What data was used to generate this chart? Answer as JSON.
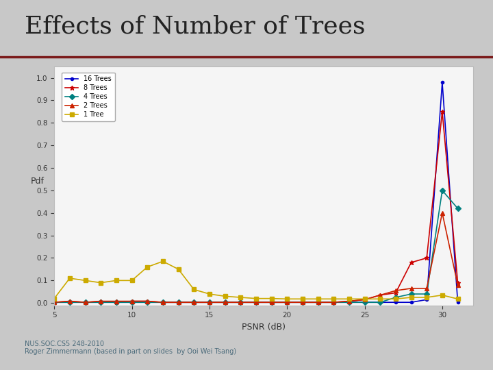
{
  "title": "Effects of Number of Trees",
  "title_fontsize": 26,
  "title_color": "#222222",
  "subtitle_line_color": "#7B1A1A",
  "xlabel": "PSNR (dB)",
  "ylabel": "Pdf",
  "xlim": [
    5,
    32
  ],
  "ylim": [
    -0.01,
    1.05
  ],
  "xticks": [
    5,
    10,
    15,
    20,
    25,
    30
  ],
  "yticks": [
    0,
    0.1,
    0.2,
    0.3,
    0.4,
    0.5,
    0.6,
    0.7,
    0.8,
    0.9,
    1
  ],
  "outer_bg": "#c8c8c8",
  "inner_bg": "#ffffff",
  "plot_bg_color": "#f5f5f5",
  "footer_line1": "NUS.SOC.CS5 248-2010",
  "footer_line2": "Roger Zimmermann (based in part on slides  by Ooi Wei Tsang)",
  "footer_color": "#4a6a7a",
  "footer_fontsize": 7,
  "series": [
    {
      "label": "16 Trees",
      "color": "#0000cc",
      "marker": "o",
      "markersize": 3,
      "linewidth": 1.2,
      "x": [
        5,
        6,
        7,
        8,
        9,
        10,
        11,
        12,
        13,
        14,
        15,
        16,
        17,
        18,
        19,
        20,
        21,
        22,
        23,
        24,
        25,
        26,
        27,
        28,
        29,
        30,
        31
      ],
      "y": [
        0.003,
        0.003,
        0.003,
        0.003,
        0.003,
        0.003,
        0.003,
        0.003,
        0.003,
        0.003,
        0.003,
        0.003,
        0.003,
        0.003,
        0.003,
        0.003,
        0.003,
        0.003,
        0.003,
        0.003,
        0.003,
        0.003,
        0.003,
        0.003,
        0.015,
        0.98,
        0.003
      ]
    },
    {
      "label": "8 Trees",
      "color": "#cc0000",
      "marker": "*",
      "markersize": 5,
      "linewidth": 1.2,
      "x": [
        5,
        6,
        7,
        8,
        9,
        10,
        11,
        12,
        13,
        14,
        15,
        16,
        17,
        18,
        19,
        20,
        21,
        22,
        23,
        24,
        25,
        26,
        27,
        28,
        29,
        30,
        31
      ],
      "y": [
        0.003,
        0.008,
        0.003,
        0.008,
        0.003,
        0.008,
        0.008,
        0.003,
        0.003,
        0.003,
        0.003,
        0.003,
        0.003,
        0.003,
        0.003,
        0.003,
        0.003,
        0.003,
        0.003,
        0.008,
        0.015,
        0.035,
        0.045,
        0.18,
        0.2,
        0.85,
        0.09
      ]
    },
    {
      "label": "4 Trees",
      "color": "#008080",
      "marker": "D",
      "markersize": 4,
      "linewidth": 1.2,
      "x": [
        5,
        6,
        7,
        8,
        9,
        10,
        11,
        12,
        13,
        14,
        15,
        16,
        17,
        18,
        19,
        20,
        21,
        22,
        23,
        24,
        25,
        26,
        27,
        28,
        29,
        30,
        31
      ],
      "y": [
        0.003,
        0.003,
        0.003,
        0.003,
        0.003,
        0.003,
        0.003,
        0.003,
        0.003,
        0.003,
        0.003,
        0.003,
        0.003,
        0.003,
        0.003,
        0.003,
        0.003,
        0.003,
        0.003,
        0.003,
        0.003,
        0.003,
        0.025,
        0.04,
        0.04,
        0.5,
        0.42
      ]
    },
    {
      "label": "2 Trees",
      "color": "#cc2200",
      "marker": "^",
      "markersize": 4,
      "linewidth": 1.2,
      "x": [
        5,
        6,
        7,
        8,
        9,
        10,
        11,
        12,
        13,
        14,
        15,
        16,
        17,
        18,
        19,
        20,
        21,
        22,
        23,
        24,
        25,
        26,
        27,
        28,
        29,
        30,
        31
      ],
      "y": [
        0.003,
        0.008,
        0.003,
        0.008,
        0.008,
        0.008,
        0.008,
        0.003,
        0.003,
        0.003,
        0.003,
        0.003,
        0.003,
        0.003,
        0.003,
        0.003,
        0.003,
        0.003,
        0.003,
        0.008,
        0.015,
        0.035,
        0.055,
        0.065,
        0.065,
        0.4,
        0.08
      ]
    },
    {
      "label": "1 Tree",
      "color": "#ccaa00",
      "marker": "s",
      "markersize": 4,
      "linewidth": 1.2,
      "x": [
        5,
        6,
        7,
        8,
        9,
        10,
        11,
        12,
        13,
        14,
        15,
        16,
        17,
        18,
        19,
        20,
        21,
        22,
        23,
        24,
        25,
        26,
        27,
        28,
        29,
        30,
        31
      ],
      "y": [
        0.02,
        0.11,
        0.1,
        0.09,
        0.1,
        0.1,
        0.16,
        0.185,
        0.15,
        0.06,
        0.04,
        0.03,
        0.025,
        0.02,
        0.02,
        0.018,
        0.018,
        0.018,
        0.018,
        0.018,
        0.018,
        0.018,
        0.018,
        0.025,
        0.025,
        0.035,
        0.018
      ]
    }
  ]
}
